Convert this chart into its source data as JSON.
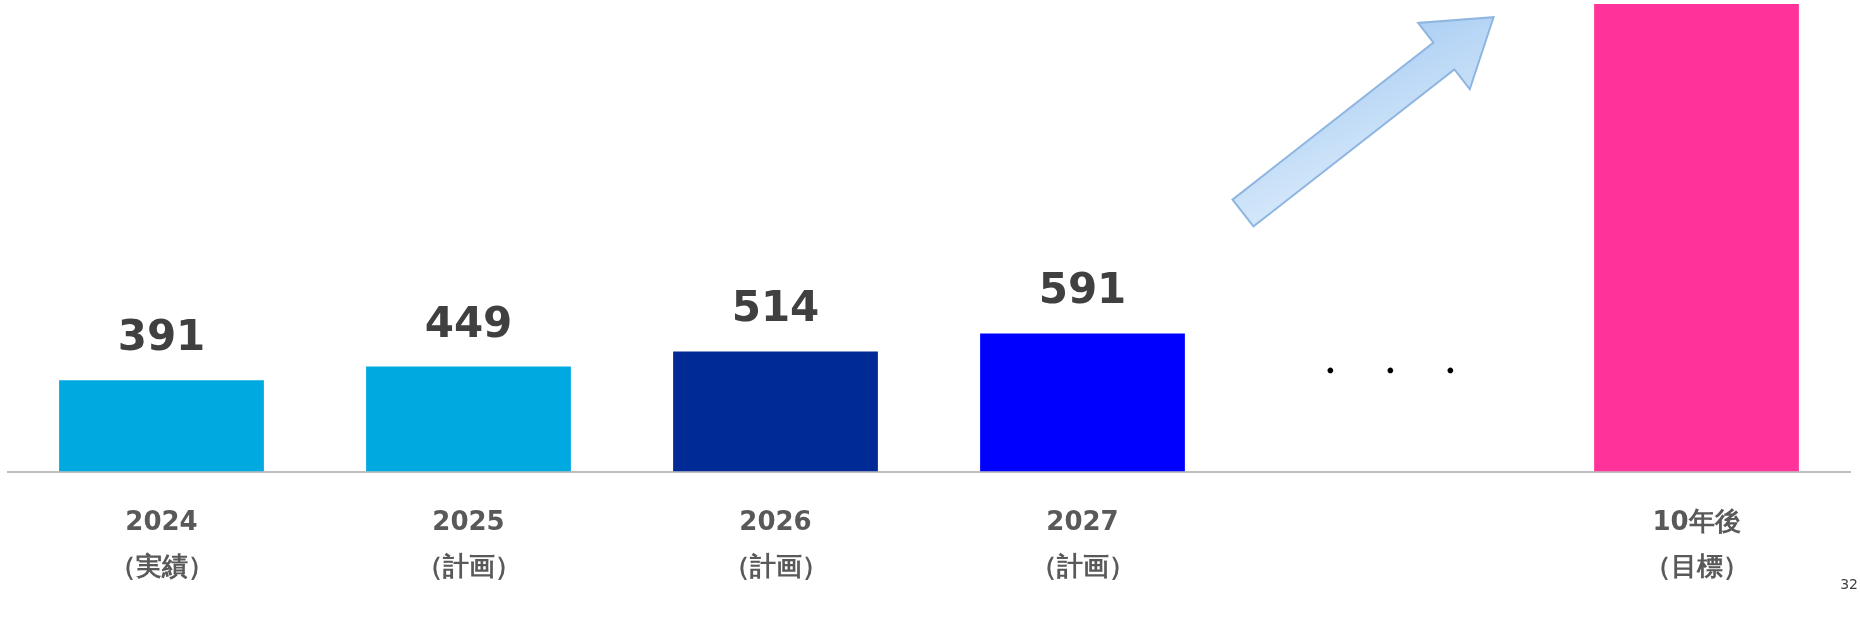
{
  "chart_data": {
    "type": "bar",
    "categories": [
      "2024（実績）",
      "2025（計画）",
      "2026（計画）",
      "2027（計画）",
      null,
      "10年後（目標）"
    ],
    "values": [
      391,
      449,
      514,
      591,
      null,
      2000
    ],
    "colors": [
      "#00a9e0",
      "#00a9e0",
      "#002b96",
      "#0000ff",
      null,
      "#ff3399"
    ],
    "value_labels": [
      "391",
      "449",
      "514",
      "591",
      null,
      null
    ],
    "ylim": [
      0,
      2000
    ],
    "tick_labels": "x",
    "grid": false,
    "legend": false,
    "annotations": [
      "・　・　・",
      "32"
    ]
  }
}
